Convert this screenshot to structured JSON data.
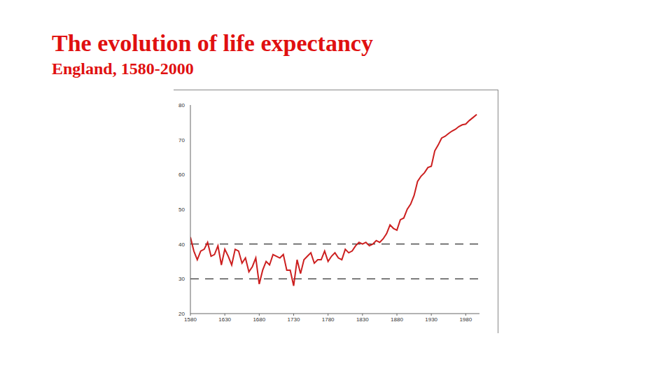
{
  "chart_data": {
    "type": "line",
    "title": "The evolution of life expectancy",
    "subtitle": "England, 1580-2000",
    "x": [
      1580,
      1585,
      1590,
      1595,
      1600,
      1605,
      1610,
      1615,
      1620,
      1625,
      1630,
      1635,
      1640,
      1645,
      1650,
      1655,
      1660,
      1665,
      1670,
      1675,
      1680,
      1685,
      1690,
      1695,
      1700,
      1705,
      1710,
      1715,
      1720,
      1725,
      1730,
      1735,
      1740,
      1745,
      1750,
      1755,
      1760,
      1765,
      1770,
      1775,
      1780,
      1785,
      1790,
      1795,
      1800,
      1805,
      1810,
      1815,
      1820,
      1825,
      1830,
      1835,
      1840,
      1845,
      1850,
      1855,
      1860,
      1865,
      1870,
      1875,
      1880,
      1885,
      1890,
      1895,
      1900,
      1905,
      1910,
      1915,
      1920,
      1925,
      1930,
      1935,
      1940,
      1945,
      1950,
      1955,
      1960,
      1965,
      1970,
      1975,
      1980,
      1985,
      1990,
      1996
    ],
    "values": [
      42,
      38,
      35.5,
      38,
      38.5,
      40.5,
      36.5,
      37,
      39.5,
      34,
      38.5,
      36.5,
      34,
      38.5,
      38,
      34.5,
      36,
      32,
      33.5,
      36,
      28.5,
      32.5,
      35,
      34,
      37,
      36.5,
      36,
      37,
      32.5,
      32.5,
      28,
      35.5,
      31.5,
      35.5,
      36.5,
      37.5,
      34.5,
      35.5,
      35.5,
      38,
      35,
      36.5,
      37.5,
      36,
      35.5,
      38.5,
      37.5,
      38,
      39.5,
      40.5,
      40,
      40.5,
      39.5,
      40,
      41,
      40.5,
      41.5,
      43,
      45.5,
      44.5,
      44,
      47,
      47.5,
      50,
      51.5,
      54,
      58,
      59.5,
      60.5,
      62,
      62.4,
      66.8,
      68.5,
      70.5,
      71,
      71.8,
      72.5,
      73,
      73.8,
      74.3,
      74.5,
      75.5,
      76.3,
      77.3
    ],
    "color": "#cc1f1f",
    "xlim": [
      1580,
      2000
    ],
    "ylim": [
      20,
      80
    ],
    "xticks": [
      1580,
      1630,
      1680,
      1730,
      1780,
      1830,
      1880,
      1930,
      1980
    ],
    "yticks": [
      20,
      30,
      40,
      50,
      60,
      70,
      80
    ],
    "grid": false,
    "reference_lines": [
      30,
      40
    ]
  }
}
